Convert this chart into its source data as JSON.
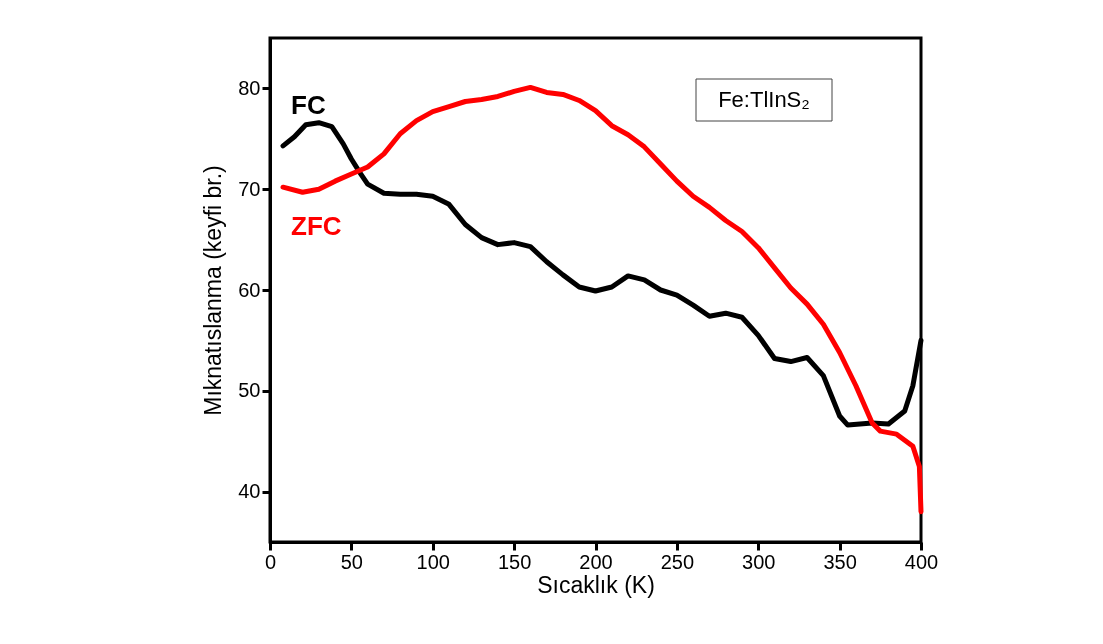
{
  "chart_data": {
    "type": "line",
    "xlabel": "Sıcaklık (K)",
    "ylabel": "Mıknatıslanma (keyfi br.)",
    "annotations": [
      "Fe:TlInS₂"
    ],
    "xlim": [
      0,
      400
    ],
    "xticks": [
      0,
      50,
      100,
      150,
      200,
      250,
      300,
      350,
      400
    ],
    "ylim": [
      35,
      85
    ],
    "yticks": [
      40,
      50,
      60,
      70,
      80
    ],
    "grid": false,
    "marker": "none",
    "line_style": "solid",
    "series": [
      {
        "name": "FC",
        "color": "#000000",
        "x": [
          8,
          15,
          22,
          30,
          38,
          45,
          50,
          55,
          60,
          70,
          80,
          90,
          100,
          110,
          120,
          130,
          140,
          150,
          160,
          170,
          180,
          190,
          200,
          210,
          220,
          230,
          240,
          250,
          260,
          270,
          280,
          290,
          300,
          310,
          320,
          330,
          340,
          350,
          355,
          370,
          380,
          390,
          395,
          400
        ],
        "values": [
          74.3,
          75.2,
          76.4,
          76.6,
          76.2,
          74.5,
          73,
          71.7,
          70.5,
          69.6,
          69.5,
          69.5,
          69.3,
          68.5,
          66.5,
          65.2,
          64.5,
          64.7,
          64.3,
          62.8,
          61.5,
          60.3,
          59.9,
          60.3,
          61.4,
          61,
          60,
          59.5,
          58.5,
          57.4,
          57.7,
          57.3,
          55.5,
          53.2,
          52.9,
          53.3,
          51.5,
          47.5,
          46.6,
          46.8,
          46.7,
          48,
          50.5,
          55
        ]
      },
      {
        "name": "ZFC",
        "color": "#ff0000",
        "x": [
          8,
          20,
          30,
          40,
          50,
          60,
          70,
          80,
          90,
          100,
          110,
          120,
          130,
          140,
          150,
          160,
          170,
          180,
          190,
          200,
          210,
          220,
          230,
          240,
          250,
          260,
          270,
          280,
          290,
          300,
          310,
          320,
          330,
          340,
          350,
          360,
          370,
          375,
          385,
          395,
          399,
          400
        ],
        "values": [
          70.2,
          69.7,
          70,
          70.8,
          71.5,
          72.2,
          73.5,
          75.5,
          76.8,
          77.7,
          78.2,
          78.7,
          78.9,
          79.2,
          79.7,
          80.1,
          79.6,
          79.4,
          78.8,
          77.8,
          76.3,
          75.4,
          74.2,
          72.5,
          70.8,
          69.3,
          68.2,
          66.9,
          65.8,
          64.2,
          62.2,
          60.2,
          58.6,
          56.6,
          53.8,
          50.5,
          46.8,
          46,
          45.7,
          44.5,
          42.5,
          38
        ]
      }
    ]
  }
}
